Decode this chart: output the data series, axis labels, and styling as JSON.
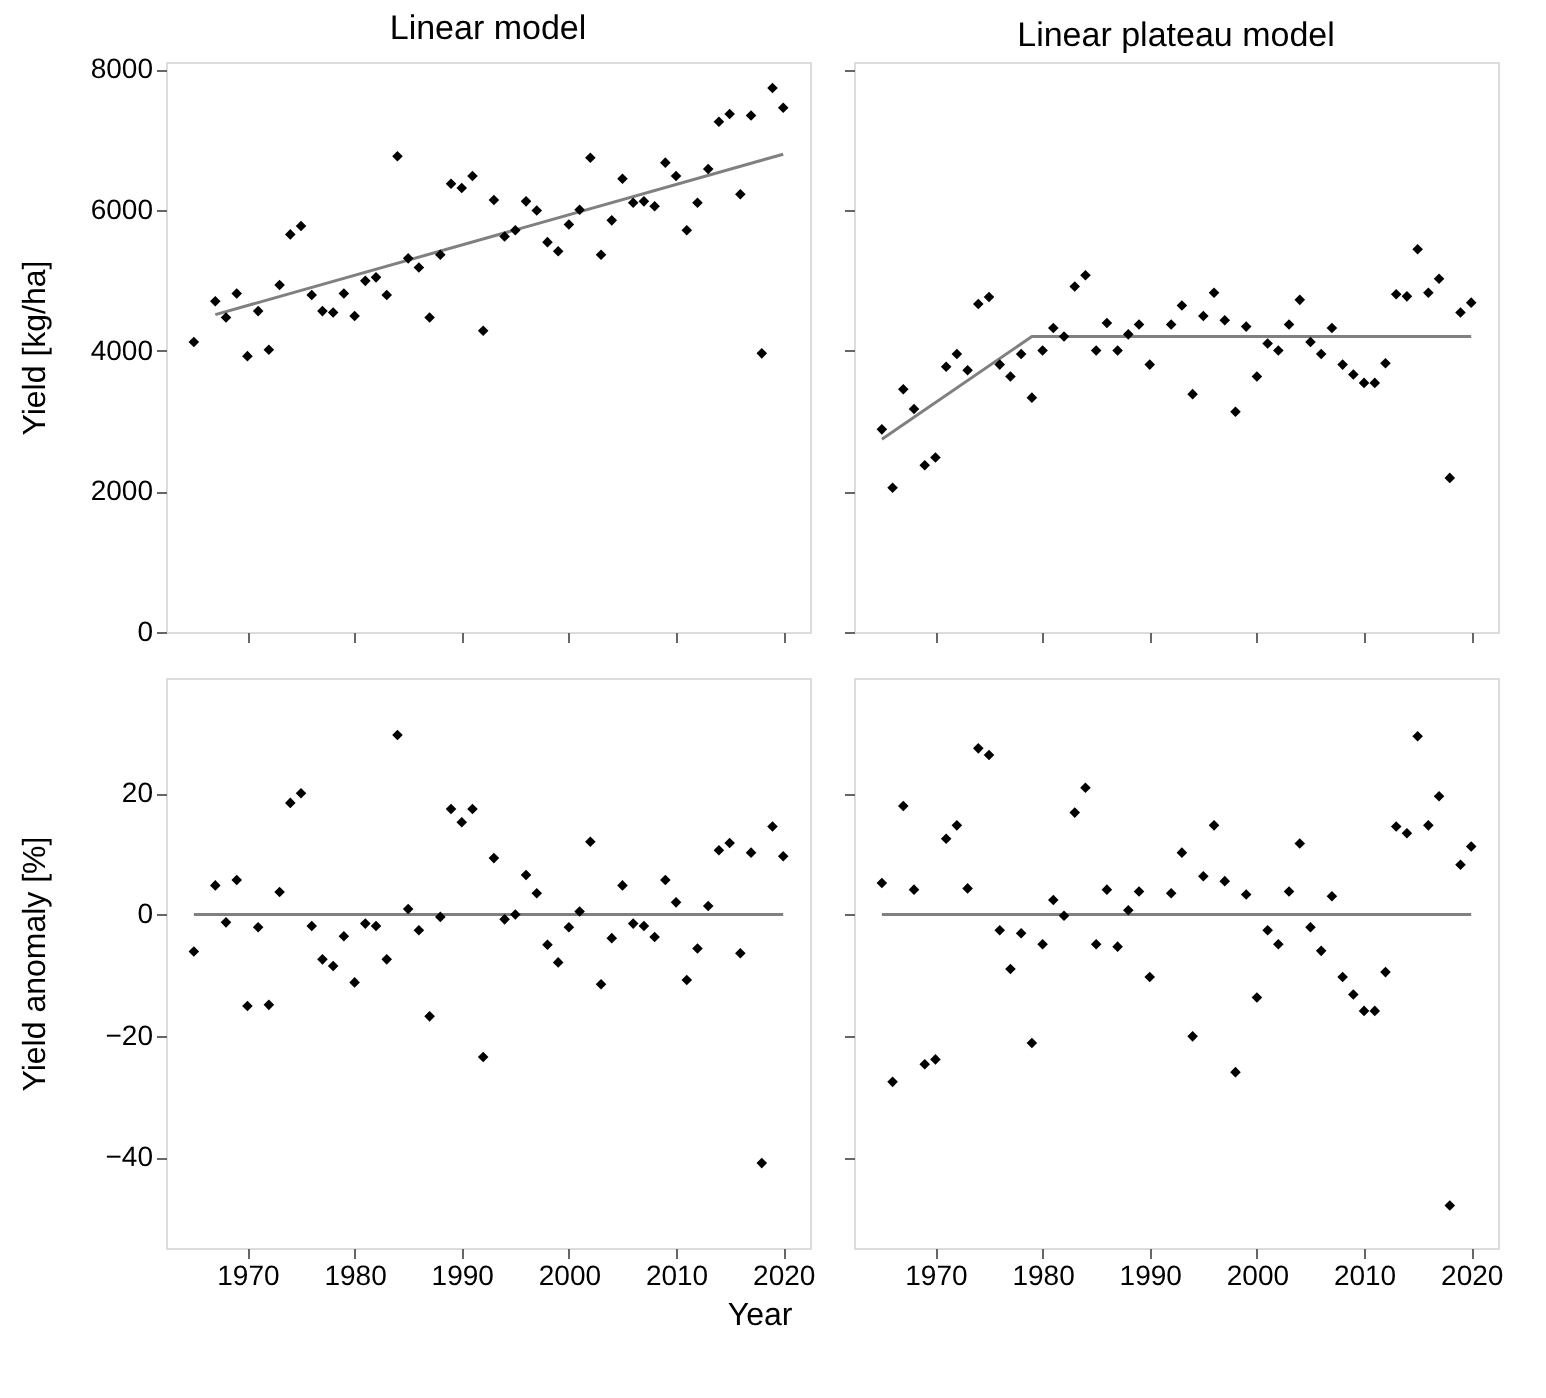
{
  "chart_data": [
    {
      "type": "scatter",
      "title": "Linear model",
      "ylabel": "Yield [kg/ha]",
      "xlim": [
        1962.4,
        2022.5
      ],
      "xticks": [
        1970,
        1980,
        1990,
        2000,
        2010,
        2020
      ],
      "ylim": [
        0,
        8100
      ],
      "yticks": [
        0,
        2000,
        4000,
        6000,
        8000
      ],
      "tick_labels": "y",
      "grid": false,
      "marker": "diamond",
      "series": [
        {
          "type": "scatter",
          "color": "#000000",
          "x": [
            1965,
            1967,
            1968,
            1969,
            1970,
            1971,
            1972,
            1973,
            1974,
            1975,
            1976,
            1977,
            1978,
            1979,
            1980,
            1981,
            1982,
            1983,
            1984,
            1985,
            1986,
            1987,
            1988,
            1989,
            1990,
            1991,
            1992,
            1993,
            1994,
            1995,
            1996,
            1997,
            1998,
            1999,
            2000,
            2001,
            2002,
            2003,
            2004,
            2005,
            2006,
            2007,
            2008,
            2009,
            2010,
            2011,
            2012,
            2013,
            2014,
            2015,
            2016,
            2017,
            2018,
            2019,
            2020
          ],
          "values": [
            4120,
            4700,
            4470,
            4810,
            3920,
            4560,
            4010,
            4930,
            5650,
            5770,
            4790,
            4560,
            4540,
            4810,
            4490,
            4990,
            5040,
            4790,
            6760,
            5310,
            5180,
            4470,
            5360,
            6370,
            6310,
            6480,
            4280,
            6140,
            5620,
            5710,
            6120,
            5990,
            5540,
            5410,
            5790,
            6000,
            6740,
            5360,
            5850,
            6440,
            6100,
            6120,
            6050,
            6670,
            6480,
            5710,
            6100,
            6580,
            7250,
            7360,
            6220,
            7340,
            3960,
            7730,
            7450
          ]
        },
        {
          "type": "line",
          "marker": "none",
          "color": "#808080",
          "x": [
            1967,
            2020
          ],
          "values": [
            4510,
            6790
          ]
        }
      ]
    },
    {
      "type": "scatter",
      "title": "Linear plateau model",
      "xlim": [
        1962.4,
        2022.5
      ],
      "xticks": [
        1970,
        1980,
        1990,
        2000,
        2010,
        2020
      ],
      "ylim": [
        0,
        8100
      ],
      "yticks": [
        0,
        2000,
        4000,
        6000,
        8000
      ],
      "tick_labels": false,
      "grid": false,
      "marker": "diamond",
      "series": [
        {
          "type": "scatter",
          "color": "#000000",
          "x": [
            1965,
            1966,
            1967,
            1968,
            1969,
            1970,
            1971,
            1972,
            1973,
            1974,
            1975,
            1976,
            1977,
            1978,
            1979,
            1980,
            1981,
            1982,
            1983,
            1984,
            1985,
            1986,
            1987,
            1988,
            1989,
            1990,
            1992,
            1993,
            1994,
            1995,
            1996,
            1997,
            1998,
            1999,
            2000,
            2001,
            2002,
            2003,
            2004,
            2005,
            2006,
            2007,
            2008,
            2009,
            2010,
            2011,
            2012,
            2013,
            2014,
            2015,
            2016,
            2017,
            2018,
            2019,
            2020
          ],
          "values": [
            2880,
            2050,
            3450,
            3170,
            2370,
            2480,
            3770,
            3950,
            3720,
            4660,
            4760,
            3800,
            3630,
            3950,
            3330,
            4000,
            4320,
            4200,
            4910,
            5070,
            4000,
            4390,
            4000,
            4230,
            4370,
            3800,
            4370,
            4640,
            3380,
            4490,
            4820,
            4430,
            3130,
            4340,
            3630,
            4100,
            4000,
            4370,
            4720,
            4120,
            3950,
            4320,
            3800,
            3660,
            3540,
            3540,
            3820,
            4800,
            4770,
            5440,
            4820,
            5020,
            2190,
            4540,
            4680
          ]
        },
        {
          "type": "line",
          "marker": "none",
          "color": "#808080",
          "x": [
            1965,
            1979,
            2020
          ],
          "values": [
            2740,
            4200,
            4200
          ]
        }
      ]
    },
    {
      "type": "scatter",
      "ylabel": "Yield anomaly [%]",
      "xlabel": "Year",
      "xlim": [
        1962.4,
        2022.5
      ],
      "xticks": [
        1970,
        1980,
        1990,
        2000,
        2010,
        2020
      ],
      "ylim": [
        -55,
        39
      ],
      "yticks": [
        -40,
        -20,
        0,
        20
      ],
      "grid": false,
      "marker": "diamond",
      "series": [
        {
          "type": "scatter",
          "color": "#000000",
          "x": [
            1965,
            1967,
            1968,
            1969,
            1970,
            1971,
            1972,
            1973,
            1974,
            1975,
            1976,
            1977,
            1978,
            1979,
            1980,
            1981,
            1982,
            1983,
            1984,
            1985,
            1986,
            1987,
            1988,
            1989,
            1990,
            1991,
            1992,
            1993,
            1994,
            1995,
            1996,
            1997,
            1998,
            1999,
            2000,
            2001,
            2002,
            2003,
            2004,
            2005,
            2006,
            2007,
            2008,
            2009,
            2010,
            2011,
            2012,
            2013,
            2014,
            2015,
            2016,
            2017,
            2018,
            2019,
            2020
          ],
          "values": [
            -6.1,
            4.8,
            -1.3,
            5.7,
            -15.1,
            -2.1,
            -14.9,
            3.7,
            18.4,
            20.0,
            -1.9,
            -7.4,
            -8.5,
            -3.6,
            -11.2,
            -1.5,
            -1.9,
            -7.4,
            29.6,
            0.9,
            -2.6,
            -16.8,
            -0.4,
            17.4,
            15.2,
            17.4,
            -23.5,
            9.3,
            -0.8,
            0,
            6.5,
            3.5,
            -5.0,
            -7.9,
            -2.1,
            0.5,
            12.0,
            -11.5,
            -3.9,
            4.8,
            -1.5,
            -1.9,
            -3.7,
            5.7,
            2.0,
            -10.8,
            -5.6,
            1.4,
            10.6,
            11.8,
            -6.4,
            10.2,
            -41.0,
            14.5,
            9.6
          ]
        },
        {
          "type": "line",
          "marker": "none",
          "color": "#808080",
          "x": [
            1965,
            2020
          ],
          "values": [
            0,
            0
          ]
        }
      ]
    },
    {
      "type": "scatter",
      "xlim": [
        1962.4,
        2022.5
      ],
      "xticks": [
        1970,
        1980,
        1990,
        2000,
        2010,
        2020
      ],
      "ylim": [
        -55,
        39
      ],
      "yticks": [
        -40,
        -20,
        0,
        20
      ],
      "tick_labels": "x",
      "grid": false,
      "marker": "diamond",
      "series": [
        {
          "type": "scatter",
          "color": "#000000",
          "x": [
            1965,
            1966,
            1967,
            1968,
            1969,
            1970,
            1971,
            1972,
            1973,
            1974,
            1975,
            1976,
            1977,
            1978,
            1979,
            1980,
            1981,
            1982,
            1983,
            1984,
            1985,
            1986,
            1987,
            1988,
            1989,
            1990,
            1992,
            1993,
            1994,
            1995,
            1996,
            1997,
            1998,
            1999,
            2000,
            2001,
            2002,
            2003,
            2004,
            2005,
            2006,
            2007,
            2008,
            2009,
            2010,
            2011,
            2012,
            2013,
            2014,
            2015,
            2016,
            2017,
            2018,
            2019,
            2020
          ],
          "values": [
            5.2,
            -27.6,
            17.9,
            4.1,
            -24.7,
            -23.9,
            12.5,
            14.7,
            4.3,
            27.4,
            26.3,
            -2.6,
            -9.0,
            -3.1,
            -21.2,
            -4.9,
            2.4,
            -0.2,
            16.8,
            20.9,
            -4.9,
            4.1,
            -5.3,
            0.7,
            3.8,
            -10.3,
            3.5,
            10.2,
            -20.1,
            6.3,
            14.7,
            5.5,
            -26.0,
            3.3,
            -13.7,
            -2.6,
            -4.9,
            3.8,
            11.7,
            -2.1,
            -6.0,
            3.0,
            -10.3,
            -13.2,
            -15.9,
            -15.9,
            -9.5,
            14.5,
            13.4,
            29.4,
            14.7,
            19.5,
            -48.0,
            8.2,
            11.2
          ]
        },
        {
          "type": "line",
          "marker": "none",
          "color": "#808080",
          "x": [
            1965,
            2020
          ],
          "values": [
            0,
            0
          ]
        }
      ]
    }
  ]
}
